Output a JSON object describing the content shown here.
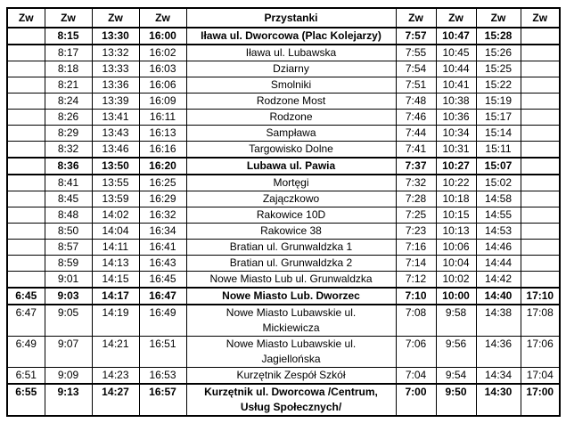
{
  "colors": {
    "border": "#000000",
    "text": "#000000",
    "background": "#ffffff"
  },
  "table": {
    "headers": [
      "Zw",
      "Zw",
      "Zw",
      "Zw",
      "Przystanki",
      "Zw",
      "Zw",
      "Zw",
      "Zw"
    ],
    "stop_column_index": 4,
    "rows": [
      {
        "bold": true,
        "cells": [
          "",
          "8:15",
          "13:30",
          "16:00",
          "Iława ul. Dworcowa (Plac Kolejarzy)",
          "7:57",
          "10:47",
          "15:28",
          ""
        ]
      },
      {
        "bold": false,
        "cells": [
          "",
          "8:17",
          "13:32",
          "16:02",
          "Iława ul. Lubawska",
          "7:55",
          "10:45",
          "15:26",
          ""
        ]
      },
      {
        "bold": false,
        "cells": [
          "",
          "8:18",
          "13:33",
          "16:03",
          "Dziarny",
          "7:54",
          "10:44",
          "15:25",
          ""
        ]
      },
      {
        "bold": false,
        "cells": [
          "",
          "8:21",
          "13:36",
          "16:06",
          "Smolniki",
          "7:51",
          "10:41",
          "15:22",
          ""
        ]
      },
      {
        "bold": false,
        "cells": [
          "",
          "8:24",
          "13:39",
          "16:09",
          "Rodzone Most",
          "7:48",
          "10:38",
          "15:19",
          ""
        ]
      },
      {
        "bold": false,
        "cells": [
          "",
          "8:26",
          "13:41",
          "16:11",
          "Rodzone",
          "7:46",
          "10:36",
          "15:17",
          ""
        ]
      },
      {
        "bold": false,
        "cells": [
          "",
          "8:29",
          "13:43",
          "16:13",
          "Sampława",
          "7:44",
          "10:34",
          "15:14",
          ""
        ]
      },
      {
        "bold": false,
        "cells": [
          "",
          "8:32",
          "13:46",
          "16:16",
          "Targowisko Dolne",
          "7:41",
          "10:31",
          "15:11",
          ""
        ]
      },
      {
        "bold": true,
        "cells": [
          "",
          "8:36",
          "13:50",
          "16:20",
          "Lubawa ul. Pawia",
          "7:37",
          "10:27",
          "15:07",
          ""
        ]
      },
      {
        "bold": false,
        "cells": [
          "",
          "8:41",
          "13:55",
          "16:25",
          "Mortęgi",
          "7:32",
          "10:22",
          "15:02",
          ""
        ]
      },
      {
        "bold": false,
        "cells": [
          "",
          "8:45",
          "13:59",
          "16:29",
          "Zajączkowo",
          "7:28",
          "10:18",
          "14:58",
          ""
        ]
      },
      {
        "bold": false,
        "cells": [
          "",
          "8:48",
          "14:02",
          "16:32",
          "Rakowice 10D",
          "7:25",
          "10:15",
          "14:55",
          ""
        ]
      },
      {
        "bold": false,
        "cells": [
          "",
          "8:50",
          "14:04",
          "16:34",
          "Rakowice 38",
          "7:23",
          "10:13",
          "14:53",
          ""
        ]
      },
      {
        "bold": false,
        "cells": [
          "",
          "8:57",
          "14:11",
          "16:41",
          "Bratian ul. Grunwaldzka 1",
          "7:16",
          "10:06",
          "14:46",
          ""
        ]
      },
      {
        "bold": false,
        "cells": [
          "",
          "8:59",
          "14:13",
          "16:43",
          "Bratian ul. Grunwaldzka 2",
          "7:14",
          "10:04",
          "14:44",
          ""
        ]
      },
      {
        "bold": false,
        "cells": [
          "",
          "9:01",
          "14:15",
          "16:45",
          "Nowe Miasto Lub ul. Grunwaldzka",
          "7:12",
          "10:02",
          "14:42",
          ""
        ]
      },
      {
        "bold": true,
        "cells": [
          "6:45",
          "9:03",
          "14:17",
          "16:47",
          "Nowe Miasto Lub. Dworzec",
          "7:10",
          "10:00",
          "14:40",
          "17:10"
        ]
      },
      {
        "bold": false,
        "cells": [
          "6:47",
          "9:05",
          "14:19",
          "16:49",
          "Nowe Miasto Lubawskie ul.\nMickiewicza",
          "7:08",
          "9:58",
          "14:38",
          "17:08"
        ]
      },
      {
        "bold": false,
        "cells": [
          "6:49",
          "9:07",
          "14:21",
          "16:51",
          "Nowe Miasto Lubawskie ul.\nJagiellońska",
          "7:06",
          "9:56",
          "14:36",
          "17:06"
        ]
      },
      {
        "bold": false,
        "cells": [
          "6:51",
          "9:09",
          "14:23",
          "16:53",
          "Kurzętnik Zespół Szkół",
          "7:04",
          "9:54",
          "14:34",
          "17:04"
        ]
      },
      {
        "bold": true,
        "cells": [
          "6:55",
          "9:13",
          "14:27",
          "16:57",
          "Kurzętnik ul. Dworcowa /Centrum,\nUsług Społecznych/",
          "7:00",
          "9:50",
          "14:30",
          "17:00"
        ]
      }
    ]
  }
}
